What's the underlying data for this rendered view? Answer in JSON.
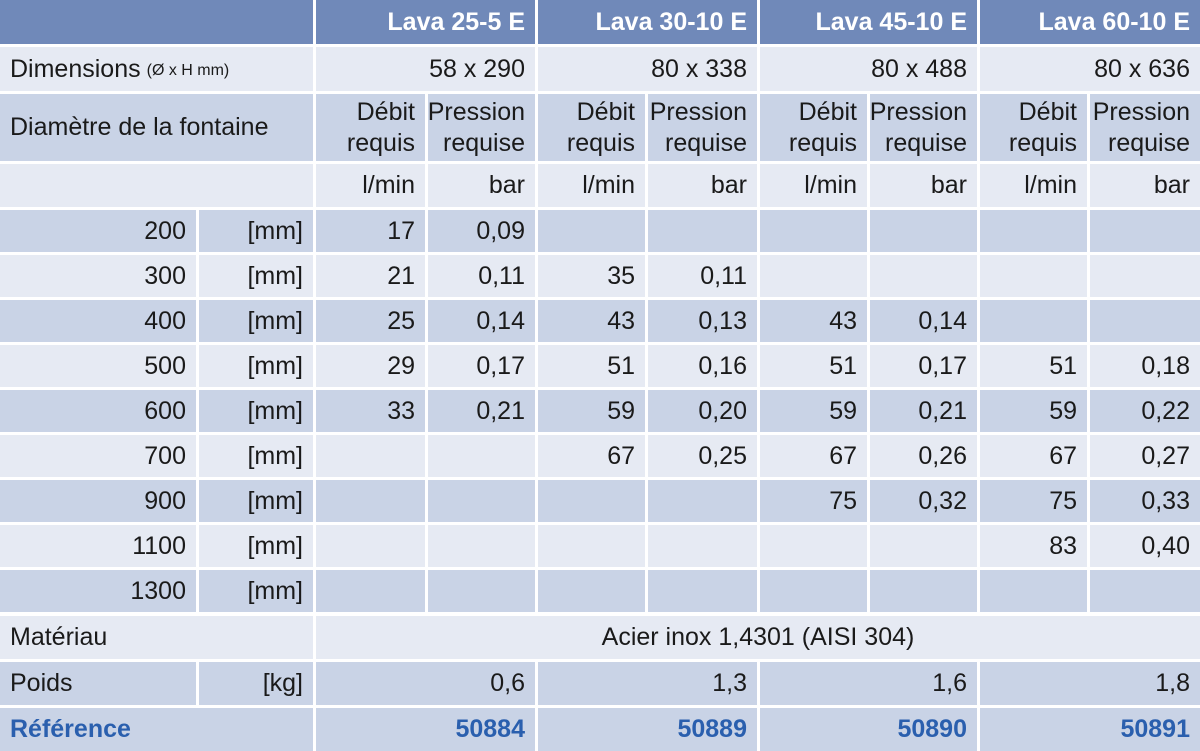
{
  "table": {
    "models": [
      {
        "name": "Lava 25-5 E",
        "dimensions": "58 x 290",
        "flow_header": "Débit requis",
        "pressure_header": "Pression requise",
        "flow_unit": "l/min",
        "pressure_unit": "bar",
        "weight": "0,6",
        "reference": "50884"
      },
      {
        "name": "Lava 30-10 E",
        "dimensions": "80 x 338",
        "flow_header": "Débit requis",
        "pressure_header": "Pression requise",
        "flow_unit": "l/min",
        "pressure_unit": "bar",
        "weight": "1,3",
        "reference": "50889"
      },
      {
        "name": "Lava 45-10 E",
        "dimensions": "80 x 488",
        "flow_header": "Débit requis",
        "pressure_header": "Pression requise",
        "flow_unit": "l/min",
        "pressure_unit": "bar",
        "weight": "1,6",
        "reference": "50890"
      },
      {
        "name": "Lava 60-10 E",
        "dimensions": "80 x 636",
        "flow_header": "Débit requis",
        "pressure_header": "Pression requise",
        "flow_unit": "l/min",
        "pressure_unit": "bar",
        "weight": "1,8",
        "reference": "50891"
      }
    ],
    "dimensions_label": "Dimensions",
    "dimensions_note": "(Ø x H mm)",
    "diameter_label": "Diamètre de la fontaine",
    "rows": [
      {
        "diameter": 200,
        "unit": "[mm]",
        "cells": [
          "17",
          "0,09",
          null,
          null,
          null,
          null,
          null,
          null
        ]
      },
      {
        "diameter": 300,
        "unit": "[mm]",
        "cells": [
          "21",
          "0,11",
          "35",
          "0,11",
          null,
          null,
          null,
          null
        ]
      },
      {
        "diameter": 400,
        "unit": "[mm]",
        "cells": [
          "25",
          "0,14",
          "43",
          "0,13",
          "43",
          "0,14",
          null,
          null
        ]
      },
      {
        "diameter": 500,
        "unit": "[mm]",
        "cells": [
          "29",
          "0,17",
          "51",
          "0,16",
          "51",
          "0,17",
          "51",
          "0,18"
        ]
      },
      {
        "diameter": 600,
        "unit": "[mm]",
        "cells": [
          "33",
          "0,21",
          "59",
          "0,20",
          "59",
          "0,21",
          "59",
          "0,22"
        ]
      },
      {
        "diameter": 700,
        "unit": "[mm]",
        "cells": [
          null,
          null,
          "67",
          "0,25",
          "67",
          "0,26",
          "67",
          "0,27"
        ]
      },
      {
        "diameter": 900,
        "unit": "[mm]",
        "cells": [
          null,
          null,
          null,
          null,
          "75",
          "0,32",
          "75",
          "0,33"
        ]
      },
      {
        "diameter": 1100,
        "unit": "[mm]",
        "cells": [
          null,
          null,
          null,
          null,
          null,
          null,
          "83",
          "0,40"
        ]
      },
      {
        "diameter": 1300,
        "unit": "[mm]",
        "cells": [
          null,
          null,
          null,
          null,
          null,
          null,
          null,
          null
        ]
      }
    ],
    "material_label": "Matériau",
    "material": "Acier inox 1,4301 (AISI 304)",
    "weight_label": "Poids",
    "weight_unit": "[kg]",
    "reference_label": "Référence"
  }
}
